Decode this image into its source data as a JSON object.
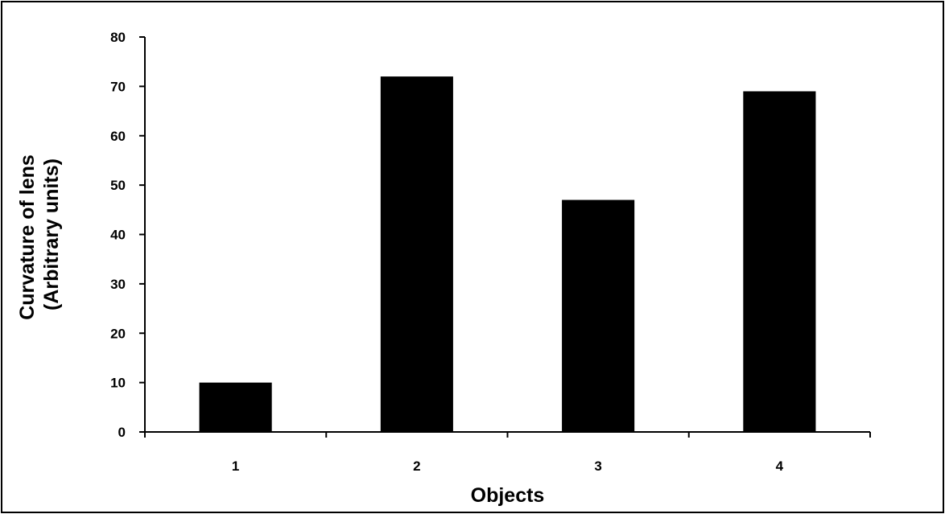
{
  "chart_data": {
    "type": "bar",
    "title": "",
    "xlabel": "Objects",
    "ylabel_lines": [
      "Curvature of lens",
      "(Arbitrary units)"
    ],
    "categories": [
      "1",
      "2",
      "3",
      "4"
    ],
    "values": [
      10,
      72,
      47,
      69
    ],
    "ylim": [
      0,
      80
    ],
    "yticks": [
      0,
      10,
      20,
      30,
      40,
      50,
      60,
      70,
      80
    ],
    "grid": false,
    "legend": "none",
    "bar_color": "#000000"
  }
}
